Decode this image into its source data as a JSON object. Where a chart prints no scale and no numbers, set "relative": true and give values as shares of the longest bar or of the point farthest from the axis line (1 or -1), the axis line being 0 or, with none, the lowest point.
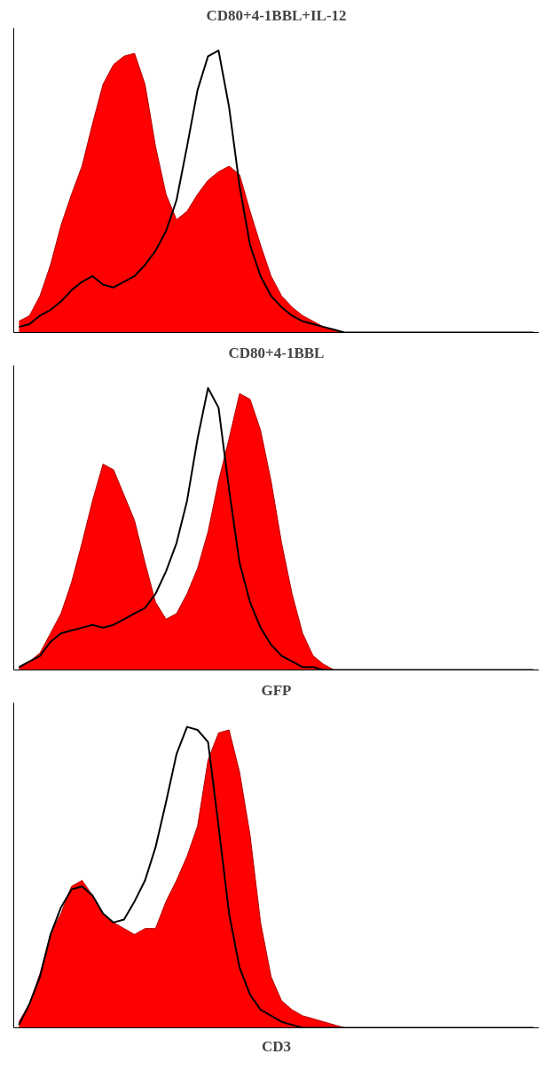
{
  "chart_data": [
    {
      "type": "area",
      "title": "CD80+4-1BBL+IL-12",
      "relative": true,
      "grid": false,
      "categories": [
        null,
        null,
        null,
        null,
        null,
        null,
        null,
        null,
        null,
        null,
        null,
        null,
        null,
        null,
        null,
        null,
        null,
        null,
        null,
        null,
        null,
        null,
        null,
        null,
        null,
        null,
        null,
        null,
        null,
        null,
        null,
        null,
        null,
        null,
        null,
        null,
        null,
        null,
        null,
        null,
        null,
        null,
        null,
        null,
        null,
        null,
        null,
        null,
        null,
        null
      ],
      "series": [
        {
          "color": "#ff0000",
          "values": [
            0.04,
            0.06,
            0.13,
            0.24,
            0.38,
            0.49,
            0.59,
            0.74,
            0.88,
            0.95,
            0.98,
            0.99,
            0.88,
            0.66,
            0.49,
            0.4,
            0.43,
            0.49,
            0.54,
            0.57,
            0.59,
            0.56,
            0.43,
            0.31,
            0.2,
            0.13,
            0.09,
            0.06,
            0.04,
            0.02,
            0.01,
            0,
            0,
            0,
            0,
            0,
            0,
            0,
            0,
            0,
            0,
            0,
            0,
            0,
            0,
            0,
            0,
            0,
            0,
            0
          ]
        },
        {
          "type": "line",
          "color": "#000000",
          "values": [
            0.02,
            0.03,
            0.06,
            0.08,
            0.11,
            0.15,
            0.18,
            0.2,
            0.17,
            0.16,
            0.18,
            0.2,
            0.24,
            0.29,
            0.36,
            0.47,
            0.66,
            0.86,
            0.98,
            1.0,
            0.8,
            0.52,
            0.31,
            0.2,
            0.13,
            0.09,
            0.06,
            0.04,
            0.03,
            0.02,
            0.01,
            0,
            0,
            0,
            0,
            0,
            0,
            0,
            0,
            0,
            0,
            0,
            0,
            0,
            0,
            0,
            0,
            0,
            0,
            0
          ]
        }
      ]
    },
    {
      "type": "area",
      "title": "CD80+4-1BBL",
      "relative": true,
      "grid": false,
      "categories": [
        null,
        null,
        null,
        null,
        null,
        null,
        null,
        null,
        null,
        null,
        null,
        null,
        null,
        null,
        null,
        null,
        null,
        null,
        null,
        null,
        null,
        null,
        null,
        null,
        null,
        null,
        null,
        null,
        null,
        null,
        null,
        null,
        null,
        null,
        null,
        null,
        null,
        null,
        null,
        null,
        null,
        null,
        null,
        null,
        null,
        null,
        null,
        null,
        null,
        null
      ],
      "series": [
        {
          "color": "#ff0000",
          "values": [
            0.01,
            0.03,
            0.06,
            0.13,
            0.2,
            0.31,
            0.45,
            0.6,
            0.73,
            0.71,
            0.62,
            0.53,
            0.38,
            0.24,
            0.18,
            0.2,
            0.27,
            0.36,
            0.49,
            0.67,
            0.82,
            0.98,
            0.96,
            0.85,
            0.67,
            0.45,
            0.27,
            0.13,
            0.05,
            0.02,
            0,
            0,
            0,
            0,
            0,
            0,
            0,
            0,
            0,
            0,
            0,
            0,
            0,
            0,
            0,
            0,
            0,
            0,
            0,
            0
          ]
        },
        {
          "type": "line",
          "color": "#000000",
          "values": [
            0.01,
            0.03,
            0.05,
            0.1,
            0.13,
            0.14,
            0.15,
            0.16,
            0.15,
            0.16,
            0.18,
            0.2,
            0.22,
            0.27,
            0.35,
            0.45,
            0.6,
            0.82,
            1.0,
            0.93,
            0.64,
            0.38,
            0.24,
            0.15,
            0.09,
            0.05,
            0.03,
            0.01,
            0.01,
            0,
            0,
            0,
            0,
            0,
            0,
            0,
            0,
            0,
            0,
            0,
            0,
            0,
            0,
            0,
            0,
            0,
            0,
            0,
            0,
            0
          ]
        }
      ]
    },
    {
      "type": "area",
      "title": "GFP",
      "xlabel": "CD3",
      "relative": true,
      "grid": false,
      "categories": [
        null,
        null,
        null,
        null,
        null,
        null,
        null,
        null,
        null,
        null,
        null,
        null,
        null,
        null,
        null,
        null,
        null,
        null,
        null,
        null,
        null,
        null,
        null,
        null,
        null,
        null,
        null,
        null,
        null,
        null,
        null,
        null,
        null,
        null,
        null,
        null,
        null,
        null,
        null,
        null,
        null,
        null,
        null,
        null,
        null,
        null,
        null,
        null,
        null,
        null
      ],
      "series": [
        {
          "color": "#ff0000",
          "values": [
            0.02,
            0.08,
            0.18,
            0.31,
            0.38,
            0.47,
            0.49,
            0.44,
            0.38,
            0.35,
            0.33,
            0.31,
            0.33,
            0.33,
            0.42,
            0.49,
            0.57,
            0.67,
            0.89,
            0.98,
            0.99,
            0.85,
            0.64,
            0.35,
            0.17,
            0.09,
            0.06,
            0.04,
            0.03,
            0.02,
            0.01,
            0,
            0,
            0,
            0,
            0,
            0,
            0,
            0,
            0,
            0,
            0,
            0,
            0,
            0,
            0,
            0,
            0,
            0,
            0
          ]
        },
        {
          "type": "line",
          "color": "#000000",
          "values": [
            0.01,
            0.08,
            0.17,
            0.31,
            0.4,
            0.46,
            0.47,
            0.44,
            0.38,
            0.35,
            0.36,
            0.42,
            0.49,
            0.6,
            0.75,
            0.91,
            1.0,
            0.99,
            0.95,
            0.67,
            0.38,
            0.2,
            0.11,
            0.06,
            0.04,
            0.02,
            0.01,
            0,
            0,
            0,
            0,
            0,
            0,
            0,
            0,
            0,
            0,
            0,
            0,
            0,
            0,
            0,
            0,
            0,
            0,
            0,
            0,
            0,
            0,
            0
          ]
        }
      ]
    }
  ]
}
